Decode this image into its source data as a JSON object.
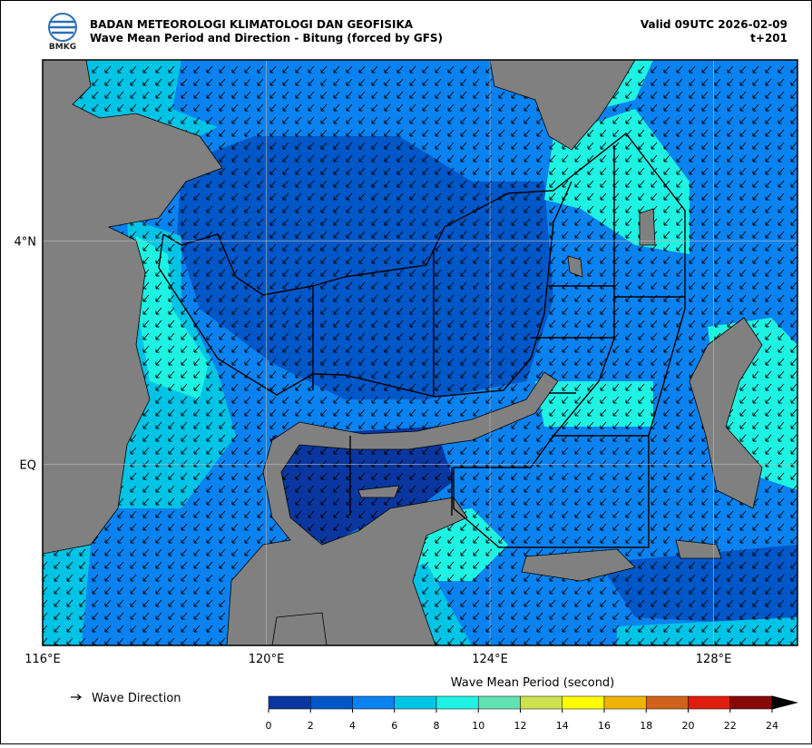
{
  "header": {
    "logo_text": "BMKG",
    "title": "BADAN METEOROLOGI KLIMATOLOGI DAN GEOFISIKA",
    "subtitle": "Wave Mean Period and Direction - Bitung (forced by GFS)",
    "valid": "Valid 09UTC 2026-02-09",
    "step": "t+201"
  },
  "map": {
    "xlim": [
      116,
      129.5
    ],
    "ylim": [
      -3.25,
      7.25
    ],
    "xticks": [
      {
        "value": 116,
        "label": "116°E"
      },
      {
        "value": 120,
        "label": "120°E"
      },
      {
        "value": 124,
        "label": "124°E"
      },
      {
        "value": 128,
        "label": "128°E"
      }
    ],
    "yticks": [
      {
        "value": 4,
        "label": "4°N"
      },
      {
        "value": 0,
        "label": "EQ"
      }
    ],
    "arrow_legend": "Wave Direction"
  },
  "colorbar": {
    "title": "Wave Mean Period (second)",
    "ticks": [
      0,
      2,
      4,
      6,
      8,
      10,
      12,
      14,
      16,
      18,
      20,
      22,
      24
    ],
    "colors": [
      "#0a36a0",
      "#0057c8",
      "#0a82f0",
      "#00c4e6",
      "#1ef2e2",
      "#62e2b2",
      "#cce050",
      "#fffb00",
      "#efb400",
      "#d0621c",
      "#e01e10",
      "#880808"
    ],
    "extend_color": "#000000"
  }
}
